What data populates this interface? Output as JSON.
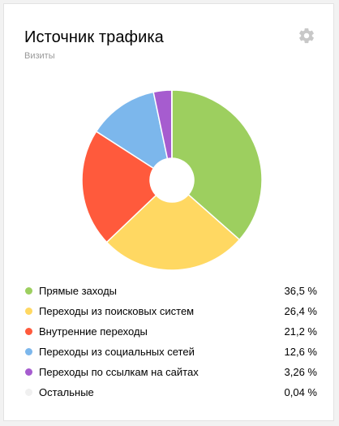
{
  "widget": {
    "title": "Источник трафика",
    "subtitle": "Визиты",
    "settings_icon": "gear-icon"
  },
  "chart_data": {
    "type": "pie",
    "donut": true,
    "categories": [
      "Прямые заходы",
      "Переходы из поисковых систем",
      "Внутренние переходы",
      "Переходы из социальных сетей",
      "Переходы по ссылкам на сайтах",
      "Остальные"
    ],
    "values": [
      36.5,
      26.4,
      21.2,
      12.6,
      3.26,
      0.04
    ],
    "value_labels": [
      "36,5 %",
      "26,4 %",
      "21,2 %",
      "12,6 %",
      "3,26 %",
      "0,04 %"
    ],
    "colors": [
      "#9dcf5f",
      "#ffd862",
      "#ff5a3c",
      "#7cb7ec",
      "#a65ccf",
      "#f0f0f0"
    ],
    "legend_position": "bottom"
  }
}
